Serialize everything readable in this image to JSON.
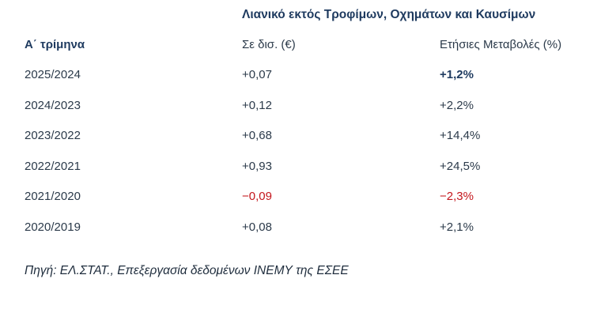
{
  "table": {
    "super_header": "Λιανικό εκτός Τροφίμων, Οχημάτων και Καυσίμων",
    "headers": {
      "period": "Α΄ τρίμηνα",
      "billions": "Σε δισ. (€)",
      "change": "Ετήσιες Μεταβολές (%)"
    },
    "rows": [
      {
        "period": "2025/2024",
        "billions": "+0,07",
        "change": "+1,2%",
        "change_bold": true,
        "negative": false
      },
      {
        "period": "2024/2023",
        "billions": "+0,12",
        "change": "+2,2%",
        "change_bold": false,
        "negative": false
      },
      {
        "period": "2023/2022",
        "billions": "+0,68",
        "change": "+14,4%",
        "change_bold": false,
        "negative": false
      },
      {
        "period": "2022/2021",
        "billions": "+0,93",
        "change": "+24,5%",
        "change_bold": false,
        "negative": false
      },
      {
        "period": "2021/2020",
        "billions": "−0,09",
        "change": "−2,3%",
        "change_bold": false,
        "negative": true
      },
      {
        "period": "2020/2019",
        "billions": "+0,08",
        "change": "+2,1%",
        "change_bold": false,
        "negative": false
      }
    ]
  },
  "source": "Πηγή: ΕΛ.ΣΤΑΤ., Επεξεργασία δεδομένων ΙΝΕΜΥ της ΕΣΕΕ",
  "colors": {
    "header": "#1e3a5f",
    "text": "#2b3a4a",
    "negative": "#c4161c"
  }
}
